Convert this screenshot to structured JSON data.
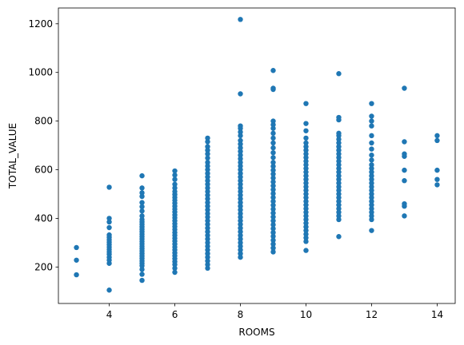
{
  "chart_data": {
    "type": "scatter",
    "title": "",
    "xlabel": "ROOMS",
    "ylabel": "TOTAL_VALUE",
    "xlim": [
      2.45,
      14.55
    ],
    "ylim": [
      50,
      1265
    ],
    "xticks": [
      4,
      6,
      8,
      10,
      12,
      14
    ],
    "yticks": [
      200,
      400,
      600,
      800,
      1000,
      1200
    ],
    "grid": false,
    "legend": "none",
    "marker_color": "#1f77b4",
    "series": [
      {
        "points": [
          [
            3,
            168
          ],
          [
            3,
            228
          ],
          [
            3,
            280
          ],
          [
            4,
            105
          ],
          [
            4,
            215
          ],
          [
            4,
            228
          ],
          [
            4,
            240
          ],
          [
            4,
            252
          ],
          [
            4,
            262
          ],
          [
            4,
            272
          ],
          [
            4,
            282
          ],
          [
            4,
            292
          ],
          [
            4,
            302
          ],
          [
            4,
            312
          ],
          [
            4,
            322
          ],
          [
            4,
            332
          ],
          [
            4,
            362
          ],
          [
            4,
            385
          ],
          [
            4,
            400
          ],
          [
            4,
            528
          ],
          [
            5,
            145
          ],
          [
            5,
            170
          ],
          [
            5,
            190
          ],
          [
            5,
            205
          ],
          [
            5,
            215
          ],
          [
            5,
            225
          ],
          [
            5,
            235
          ],
          [
            5,
            245
          ],
          [
            5,
            255
          ],
          [
            5,
            265
          ],
          [
            5,
            275
          ],
          [
            5,
            285
          ],
          [
            5,
            295
          ],
          [
            5,
            305
          ],
          [
            5,
            315
          ],
          [
            5,
            325
          ],
          [
            5,
            335
          ],
          [
            5,
            345
          ],
          [
            5,
            355
          ],
          [
            5,
            365
          ],
          [
            5,
            375
          ],
          [
            5,
            385
          ],
          [
            5,
            395
          ],
          [
            5,
            410
          ],
          [
            5,
            430
          ],
          [
            5,
            448
          ],
          [
            5,
            465
          ],
          [
            5,
            490
          ],
          [
            5,
            505
          ],
          [
            5,
            525
          ],
          [
            5,
            575
          ],
          [
            6,
            178
          ],
          [
            6,
            195
          ],
          [
            6,
            210
          ],
          [
            6,
            222
          ],
          [
            6,
            234
          ],
          [
            6,
            246
          ],
          [
            6,
            258
          ],
          [
            6,
            270
          ],
          [
            6,
            282
          ],
          [
            6,
            294
          ],
          [
            6,
            306
          ],
          [
            6,
            318
          ],
          [
            6,
            330
          ],
          [
            6,
            342
          ],
          [
            6,
            354
          ],
          [
            6,
            366
          ],
          [
            6,
            378
          ],
          [
            6,
            390
          ],
          [
            6,
            402
          ],
          [
            6,
            414
          ],
          [
            6,
            426
          ],
          [
            6,
            438
          ],
          [
            6,
            450
          ],
          [
            6,
            462
          ],
          [
            6,
            474
          ],
          [
            6,
            486
          ],
          [
            6,
            498
          ],
          [
            6,
            510
          ],
          [
            6,
            525
          ],
          [
            6,
            540
          ],
          [
            6,
            560
          ],
          [
            6,
            578
          ],
          [
            6,
            595
          ],
          [
            7,
            195
          ],
          [
            7,
            210
          ],
          [
            7,
            225
          ],
          [
            7,
            240
          ],
          [
            7,
            255
          ],
          [
            7,
            270
          ],
          [
            7,
            285
          ],
          [
            7,
            300
          ],
          [
            7,
            315
          ],
          [
            7,
            330
          ],
          [
            7,
            345
          ],
          [
            7,
            360
          ],
          [
            7,
            375
          ],
          [
            7,
            390
          ],
          [
            7,
            405
          ],
          [
            7,
            420
          ],
          [
            7,
            435
          ],
          [
            7,
            450
          ],
          [
            7,
            465
          ],
          [
            7,
            480
          ],
          [
            7,
            495
          ],
          [
            7,
            510
          ],
          [
            7,
            525
          ],
          [
            7,
            540
          ],
          [
            7,
            555
          ],
          [
            7,
            570
          ],
          [
            7,
            585
          ],
          [
            7,
            600
          ],
          [
            7,
            615
          ],
          [
            7,
            630
          ],
          [
            7,
            648
          ],
          [
            7,
            665
          ],
          [
            7,
            680
          ],
          [
            7,
            695
          ],
          [
            7,
            715
          ],
          [
            7,
            730
          ],
          [
            8,
            240
          ],
          [
            8,
            255
          ],
          [
            8,
            270
          ],
          [
            8,
            285
          ],
          [
            8,
            300
          ],
          [
            8,
            315
          ],
          [
            8,
            330
          ],
          [
            8,
            345
          ],
          [
            8,
            360
          ],
          [
            8,
            375
          ],
          [
            8,
            390
          ],
          [
            8,
            405
          ],
          [
            8,
            420
          ],
          [
            8,
            435
          ],
          [
            8,
            450
          ],
          [
            8,
            465
          ],
          [
            8,
            480
          ],
          [
            8,
            495
          ],
          [
            8,
            510
          ],
          [
            8,
            525
          ],
          [
            8,
            540
          ],
          [
            8,
            555
          ],
          [
            8,
            570
          ],
          [
            8,
            585
          ],
          [
            8,
            600
          ],
          [
            8,
            615
          ],
          [
            8,
            630
          ],
          [
            8,
            645
          ],
          [
            8,
            660
          ],
          [
            8,
            675
          ],
          [
            8,
            690
          ],
          [
            8,
            705
          ],
          [
            8,
            720
          ],
          [
            8,
            740
          ],
          [
            8,
            755
          ],
          [
            8,
            770
          ],
          [
            8,
            780
          ],
          [
            8,
            912
          ],
          [
            8,
            1218
          ],
          [
            9,
            262
          ],
          [
            9,
            278
          ],
          [
            9,
            294
          ],
          [
            9,
            310
          ],
          [
            9,
            326
          ],
          [
            9,
            342
          ],
          [
            9,
            358
          ],
          [
            9,
            374
          ],
          [
            9,
            390
          ],
          [
            9,
            406
          ],
          [
            9,
            422
          ],
          [
            9,
            438
          ],
          [
            9,
            454
          ],
          [
            9,
            470
          ],
          [
            9,
            486
          ],
          [
            9,
            502
          ],
          [
            9,
            518
          ],
          [
            9,
            534
          ],
          [
            9,
            550
          ],
          [
            9,
            566
          ],
          [
            9,
            582
          ],
          [
            9,
            598
          ],
          [
            9,
            614
          ],
          [
            9,
            630
          ],
          [
            9,
            650
          ],
          [
            9,
            670
          ],
          [
            9,
            690
          ],
          [
            9,
            710
          ],
          [
            9,
            730
          ],
          [
            9,
            750
          ],
          [
            9,
            770
          ],
          [
            9,
            785
          ],
          [
            9,
            800
          ],
          [
            9,
            930
          ],
          [
            9,
            935
          ],
          [
            9,
            1008
          ],
          [
            10,
            268
          ],
          [
            10,
            305
          ],
          [
            10,
            320
          ],
          [
            10,
            335
          ],
          [
            10,
            350
          ],
          [
            10,
            365
          ],
          [
            10,
            380
          ],
          [
            10,
            395
          ],
          [
            10,
            410
          ],
          [
            10,
            425
          ],
          [
            10,
            440
          ],
          [
            10,
            455
          ],
          [
            10,
            470
          ],
          [
            10,
            485
          ],
          [
            10,
            500
          ],
          [
            10,
            515
          ],
          [
            10,
            530
          ],
          [
            10,
            545
          ],
          [
            10,
            560
          ],
          [
            10,
            575
          ],
          [
            10,
            590
          ],
          [
            10,
            605
          ],
          [
            10,
            620
          ],
          [
            10,
            635
          ],
          [
            10,
            650
          ],
          [
            10,
            665
          ],
          [
            10,
            680
          ],
          [
            10,
            695
          ],
          [
            10,
            710
          ],
          [
            10,
            730
          ],
          [
            10,
            760
          ],
          [
            10,
            790
          ],
          [
            10,
            872
          ],
          [
            11,
            325
          ],
          [
            11,
            395
          ],
          [
            11,
            410
          ],
          [
            11,
            425
          ],
          [
            11,
            440
          ],
          [
            11,
            455
          ],
          [
            11,
            470
          ],
          [
            11,
            485
          ],
          [
            11,
            500
          ],
          [
            11,
            515
          ],
          [
            11,
            530
          ],
          [
            11,
            545
          ],
          [
            11,
            560
          ],
          [
            11,
            575
          ],
          [
            11,
            590
          ],
          [
            11,
            605
          ],
          [
            11,
            620
          ],
          [
            11,
            635
          ],
          [
            11,
            650
          ],
          [
            11,
            665
          ],
          [
            11,
            680
          ],
          [
            11,
            695
          ],
          [
            11,
            710
          ],
          [
            11,
            725
          ],
          [
            11,
            740
          ],
          [
            11,
            750
          ],
          [
            11,
            805
          ],
          [
            11,
            815
          ],
          [
            11,
            995
          ],
          [
            12,
            350
          ],
          [
            12,
            395
          ],
          [
            12,
            410
          ],
          [
            12,
            425
          ],
          [
            12,
            440
          ],
          [
            12,
            455
          ],
          [
            12,
            470
          ],
          [
            12,
            485
          ],
          [
            12,
            500
          ],
          [
            12,
            515
          ],
          [
            12,
            530
          ],
          [
            12,
            545
          ],
          [
            12,
            560
          ],
          [
            12,
            575
          ],
          [
            12,
            590
          ],
          [
            12,
            605
          ],
          [
            12,
            620
          ],
          [
            12,
            640
          ],
          [
            12,
            660
          ],
          [
            12,
            685
          ],
          [
            12,
            710
          ],
          [
            12,
            740
          ],
          [
            12,
            780
          ],
          [
            12,
            800
          ],
          [
            12,
            820
          ],
          [
            12,
            872
          ],
          [
            13,
            410
          ],
          [
            13,
            450
          ],
          [
            13,
            460
          ],
          [
            13,
            555
          ],
          [
            13,
            598
          ],
          [
            13,
            655
          ],
          [
            13,
            665
          ],
          [
            13,
            715
          ],
          [
            13,
            935
          ],
          [
            14,
            538
          ],
          [
            14,
            560
          ],
          [
            14,
            598
          ],
          [
            14,
            720
          ],
          [
            14,
            740
          ]
        ]
      }
    ]
  }
}
